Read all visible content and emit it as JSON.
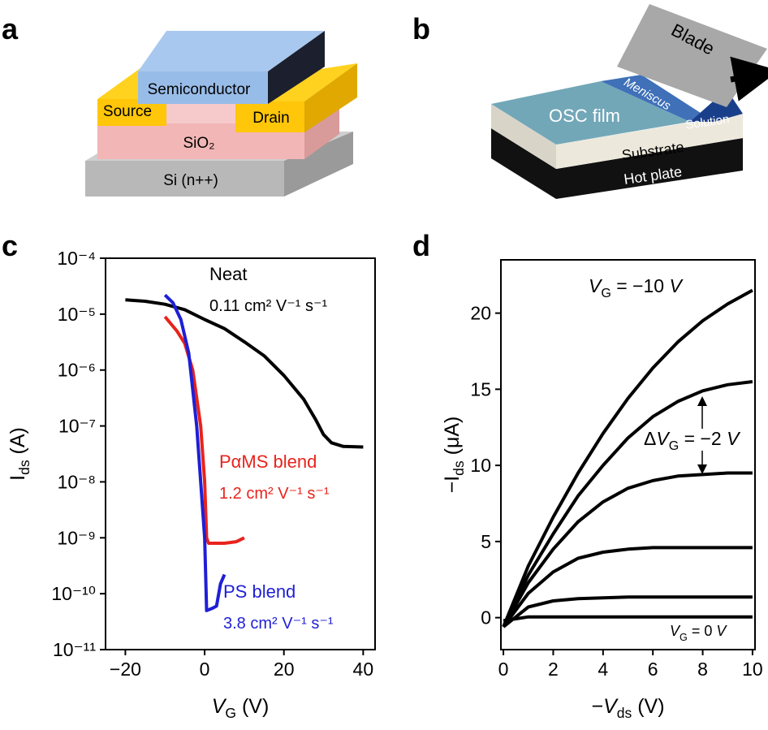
{
  "figure": {
    "panel_labels": [
      "a",
      "b",
      "c",
      "d"
    ],
    "diagram_a": {
      "semiconductor": "Semiconductor",
      "source": "Source",
      "drain": "Drain",
      "dielectric": "SiO₂",
      "gate": "Si (n++)"
    },
    "diagram_b": {
      "blade": "Blade",
      "meniscus": "Meniscus",
      "solution": "Solution",
      "film": "OSC film",
      "substrate": "Substrate",
      "hot_plate": "Hot plate"
    }
  },
  "chart_data": [
    {
      "type": "line",
      "log_y": true,
      "x_label": [
        {
          "text": "V",
          "italic": true
        },
        {
          "text": "G",
          "sub": true
        },
        {
          "text": " (V)"
        }
      ],
      "y_label": [
        {
          "text": "I"
        },
        {
          "text": "ds",
          "sub": true
        },
        {
          "text": " (A)"
        }
      ],
      "xlim": [
        -25,
        43
      ],
      "ylim": [
        1e-11,
        0.0001
      ],
      "xticks": [
        {
          "value": -20,
          "label": "−20"
        },
        0,
        20,
        40
      ],
      "yticks": [
        {
          "value": 0.0001,
          "label": "10⁻⁴"
        },
        {
          "value": 1e-05,
          "label": "10⁻⁵"
        },
        {
          "value": 1e-06,
          "label": "10⁻⁶"
        },
        {
          "value": 1e-07,
          "label": "10⁻⁷"
        },
        {
          "value": 1e-08,
          "label": "10⁻⁸"
        },
        {
          "value": 1e-09,
          "label": "10⁻⁹"
        },
        {
          "value": 1e-10,
          "label": "10⁻¹⁰"
        },
        {
          "value": 1e-11,
          "label": "10⁻¹¹"
        }
      ],
      "series": [
        {
          "name": "Neat",
          "mobility": "0.11 cm² V⁻¹ s⁻¹",
          "color": "#000000",
          "x": [
            -20,
            -15,
            -10,
            -5,
            0,
            5,
            10,
            15,
            20,
            25,
            28,
            30,
            32,
            35,
            40
          ],
          "values": [
            1.8e-05,
            1.7e-05,
            1.5e-05,
            1.2e-05,
            8e-06,
            5.5e-06,
            3.2e-06,
            1.8e-06,
            8e-07,
            3e-07,
            1.3e-07,
            7e-08,
            5e-08,
            4.3e-08,
            4.2e-08
          ]
        },
        {
          "name": "PαMS blend",
          "mobility": "1.2 cm² V⁻¹ s⁻¹",
          "color": "#e8231c",
          "x": [
            -10,
            -7,
            -5,
            -3,
            -1,
            0,
            0.5,
            1,
            5,
            8,
            10
          ],
          "values": [
            9e-06,
            5e-06,
            3e-06,
            1e-06,
            1e-07,
            1e-08,
            1e-09,
            8e-10,
            8e-10,
            8.5e-10,
            1e-09
          ]
        },
        {
          "name": "PS blend",
          "mobility": "3.8 cm² V⁻¹ s⁻¹",
          "color": "#1f1fd6",
          "x": [
            -10,
            -8,
            -6,
            -4,
            -2,
            -1,
            0,
            0.5,
            2,
            3,
            4,
            5
          ],
          "values": [
            2.2e-05,
            1.6e-05,
            8e-06,
            2e-06,
            1e-07,
            1e-08,
            1e-09,
            5e-11,
            5.5e-11,
            6e-11,
            1.5e-10,
            2.2e-10
          ]
        }
      ]
    },
    {
      "type": "line",
      "x_label": [
        {
          "text": "−"
        },
        {
          "text": "V",
          "italic": true
        },
        {
          "text": "ds",
          "sub": true
        },
        {
          "text": " (V)"
        }
      ],
      "y_label": [
        {
          "text": "−I"
        },
        {
          "text": "ds",
          "sub": true
        },
        {
          "text": " (μA)"
        }
      ],
      "xlim": [
        -0.1,
        10.1
      ],
      "ylim": [
        -2.1,
        23.5
      ],
      "xticks": [
        0,
        2,
        4,
        6,
        8,
        10
      ],
      "yticks": [
        0,
        5,
        10,
        15,
        20
      ],
      "x": [
        0,
        1,
        2,
        3,
        4,
        5,
        6,
        7,
        8,
        9,
        10
      ],
      "series": [
        {
          "color": "#000000",
          "values": [
            -0.6,
            3.4,
            6.6,
            9.5,
            12.1,
            14.4,
            16.4,
            18.1,
            19.5,
            20.6,
            21.5
          ]
        },
        {
          "color": "#000000",
          "values": [
            -0.6,
            2.8,
            5.5,
            8.0,
            10.0,
            11.8,
            13.2,
            14.2,
            14.9,
            15.3,
            15.5
          ]
        },
        {
          "color": "#000000",
          "values": [
            -0.6,
            2.3,
            4.5,
            6.3,
            7.6,
            8.5,
            9.0,
            9.3,
            9.4,
            9.5,
            9.5
          ]
        },
        {
          "color": "#000000",
          "values": [
            -0.6,
            1.6,
            3.0,
            3.9,
            4.3,
            4.5,
            4.6,
            4.6,
            4.6,
            4.6,
            4.6
          ]
        },
        {
          "color": "#000000",
          "values": [
            -0.6,
            0.7,
            1.1,
            1.25,
            1.3,
            1.35,
            1.35,
            1.35,
            1.35,
            1.35,
            1.35
          ]
        },
        {
          "color": "#000000",
          "values": [
            -0.2,
            0.05,
            0.05,
            0.05,
            0.05,
            0.05,
            0.05,
            0.05,
            0.05,
            0.05,
            0.05
          ]
        }
      ],
      "annotations": [
        [
          {
            "text": "V",
            "italic": true
          },
          {
            "text": "G",
            "sub": true
          },
          {
            "text": " = −10 "
          },
          {
            "text": "V",
            "italic": true
          }
        ],
        [
          {
            "text": "Δ"
          },
          {
            "text": "V",
            "italic": true
          },
          {
            "text": "G",
            "sub": true
          },
          {
            "text": " = −2 "
          },
          {
            "text": "V",
            "italic": true
          }
        ],
        [
          {
            "text": "V",
            "italic": true
          },
          {
            "text": "G",
            "sub": true
          },
          {
            "text": " = 0 "
          },
          {
            "text": "V",
            "italic": true
          }
        ]
      ]
    }
  ]
}
